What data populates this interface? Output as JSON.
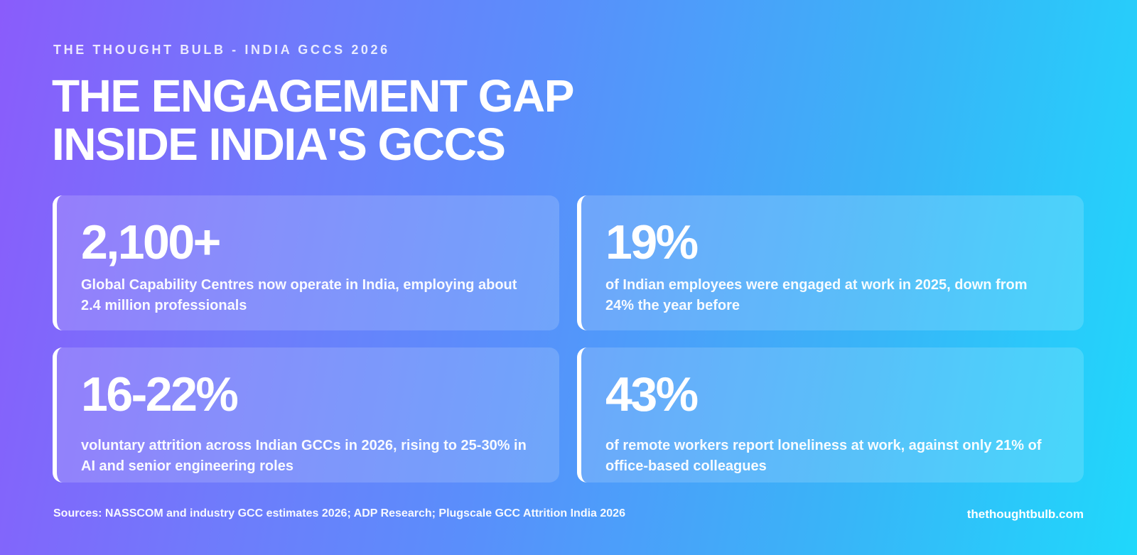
{
  "header": {
    "eyebrow": "THE THOUGHT BULB - INDIA GCCS 2026",
    "title_line1": "THE ENGAGEMENT GAP",
    "title_line2": "INSIDE INDIA'S GCCS"
  },
  "cards": [
    {
      "stat": "2,100+",
      "description": "Global Capability Centres now operate in India, employing about 2.4 million professionals"
    },
    {
      "stat": "19%",
      "description": "of Indian employees were engaged at work in 2025, down from 24% the year before"
    },
    {
      "stat": "16-22%",
      "description": "voluntary attrition across Indian GCCs in 2026, rising to 25-30% in AI and senior engineering roles"
    },
    {
      "stat": "43%",
      "description": "of remote workers report loneliness at work, against only 21% of office-based colleagues"
    }
  ],
  "footer": {
    "sources": "Sources: NASSCOM and industry GCC estimates 2026; ADP Research; Plugscale GCC Attrition India 2026",
    "website": "thethoughtbulb.com"
  },
  "colors": {
    "gradient_start": "#8a5cfb",
    "gradient_end": "#1fd8fb",
    "text": "#ffffff"
  }
}
